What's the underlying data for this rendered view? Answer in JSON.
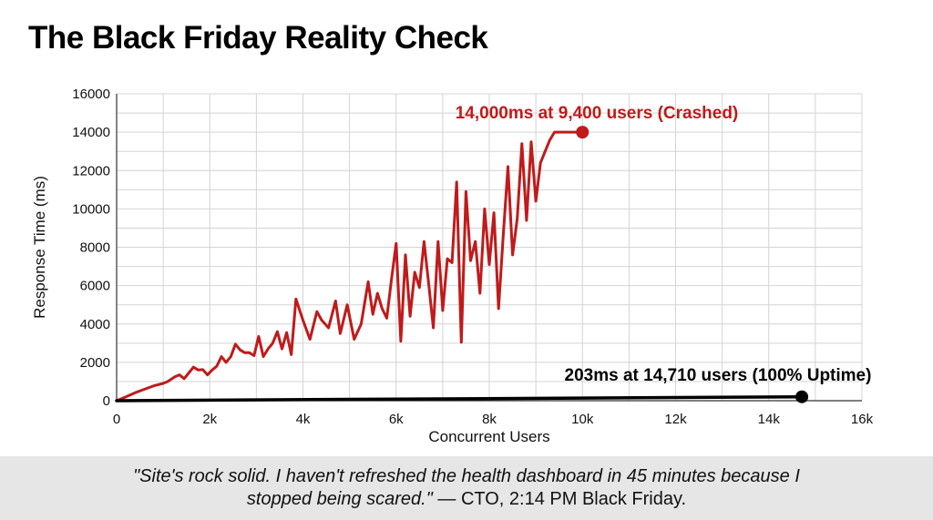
{
  "header": {
    "title": "The Black Friday Reality Check"
  },
  "chart_data": {
    "type": "line",
    "xlabel": "Concurrent Users",
    "ylabel": "Response Time (ms)",
    "xlim": [
      0,
      16000
    ],
    "ylim": [
      0,
      16000
    ],
    "x_ticks": [
      0,
      2000,
      4000,
      6000,
      8000,
      10000,
      12000,
      14000,
      16000
    ],
    "x_tick_labels": [
      "0",
      "2k",
      "4k",
      "6k",
      "8k",
      "10k",
      "12k",
      "14k",
      "16k"
    ],
    "y_ticks": [
      0,
      2000,
      4000,
      6000,
      8000,
      10000,
      12000,
      14000,
      16000
    ],
    "y_tick_labels": [
      "0",
      "2000",
      "4000",
      "6000",
      "8000",
      "10000",
      "12000",
      "14000",
      "16000"
    ],
    "grid": true,
    "series": [
      {
        "color": "#c01a1a",
        "x": [
          0,
          200,
          400,
          600,
          800,
          1000,
          1100,
          1250,
          1350,
          1450,
          1550,
          1650,
          1750,
          1850,
          1950,
          2050,
          2150,
          2250,
          2350,
          2450,
          2550,
          2650,
          2750,
          2850,
          2950,
          3050,
          3150,
          3250,
          3350,
          3450,
          3550,
          3650,
          3750,
          3850,
          4000,
          4150,
          4300,
          4400,
          4550,
          4700,
          4800,
          4950,
          5100,
          5250,
          5400,
          5500,
          5600,
          5700,
          5800,
          5900,
          6000,
          6100,
          6200,
          6300,
          6400,
          6500,
          6600,
          6700,
          6800,
          6900,
          7000,
          7100,
          7200,
          7300,
          7400,
          7500,
          7600,
          7700,
          7800,
          7900,
          8000,
          8100,
          8200,
          8300,
          8400,
          8500,
          8600,
          8700,
          8800,
          8900,
          9000,
          9100,
          9200,
          9300,
          9400,
          9500,
          9600,
          9700,
          9800,
          9900,
          10000
        ],
        "y": [
          0,
          200,
          420,
          600,
          780,
          900,
          1000,
          1250,
          1350,
          1150,
          1450,
          1750,
          1600,
          1620,
          1350,
          1600,
          1800,
          2300,
          2000,
          2300,
          2950,
          2650,
          2500,
          2500,
          2350,
          3350,
          2300,
          2700,
          3000,
          3600,
          2700,
          3550,
          2400,
          5300,
          4200,
          3200,
          4650,
          4200,
          3800,
          5200,
          3500,
          5000,
          3200,
          4000,
          6200,
          4500,
          5600,
          4800,
          4300,
          6300,
          8200,
          3100,
          7600,
          4400,
          6700,
          5900,
          8300,
          6100,
          3800,
          8300,
          4700,
          7400,
          7200,
          11400,
          3050,
          10900,
          7300,
          8300,
          5600,
          10000,
          7100,
          9800,
          4800,
          8600,
          12200,
          7600,
          9500,
          13400,
          9400,
          13500,
          10400,
          12400,
          13000,
          13600,
          14000,
          14000,
          14000,
          14000,
          14000,
          14000,
          14000
        ],
        "end_point": [
          10000,
          14000
        ]
      },
      {
        "color": "#000000",
        "x": [
          0,
          14710
        ],
        "y": [
          0,
          203
        ],
        "end_point": [
          14710,
          203
        ]
      }
    ],
    "annotations": [
      {
        "text": "14,000ms at 9,400 users (Crashed)",
        "color": "#c01a1a"
      },
      {
        "text": "203ms at 14,710 users (100% Uptime)",
        "color": "#000000"
      }
    ]
  },
  "footer": {
    "quote": "\"Site's rock solid. I haven't refreshed the health dashboard in 45 minutes because I stopped being scared.\"",
    "attribution": "— CTO, 2:14 PM Black Friday."
  }
}
